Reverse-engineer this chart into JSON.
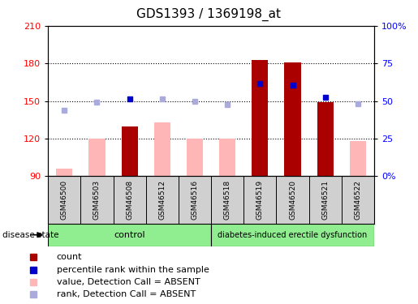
{
  "title": "GDS1393 / 1369198_at",
  "samples": [
    "GSM46500",
    "GSM46503",
    "GSM46508",
    "GSM46512",
    "GSM46516",
    "GSM46518",
    "GSM46519",
    "GSM46520",
    "GSM46521",
    "GSM46522"
  ],
  "ylim_left": [
    90,
    210
  ],
  "ylim_right": [
    0,
    100
  ],
  "yticks_left": [
    90,
    120,
    150,
    180,
    210
  ],
  "yticks_right": [
    0,
    25,
    50,
    75,
    100
  ],
  "red_bars": [
    null,
    null,
    130,
    null,
    null,
    null,
    183,
    181,
    149,
    null
  ],
  "pink_bars": [
    96,
    120,
    null,
    133,
    120,
    120,
    null,
    null,
    null,
    118
  ],
  "blue_squares": [
    null,
    null,
    152,
    null,
    null,
    null,
    164,
    163,
    153,
    null
  ],
  "lavender_squares": [
    143,
    149,
    null,
    152,
    150,
    147,
    null,
    null,
    null,
    148
  ],
  "control_count": 5,
  "disease_count": 5,
  "group1_label": "control",
  "group2_label": "diabetes-induced erectile dysfunction",
  "bar_width": 0.5,
  "red_color": "#AA0000",
  "pink_color": "#FFB6B6",
  "blue_color": "#0000CC",
  "lavender_color": "#AAAADD",
  "bg_plot": "#FFFFFF",
  "bg_label_row": "#D0D0D0",
  "bg_group": "#90EE90",
  "title_fontsize": 11,
  "tick_fontsize": 8,
  "legend_fontsize": 8
}
